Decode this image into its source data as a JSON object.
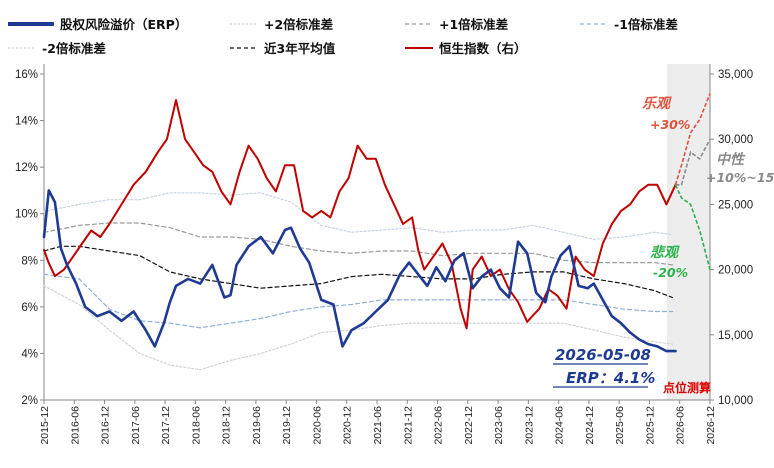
{
  "chart_data": {
    "type": "line",
    "legend": [
      {
        "key": "erp",
        "label": "股权风险溢价（ERP）",
        "color": "#1f3a93",
        "style": "solid-thick"
      },
      {
        "key": "p2",
        "label": "+2倍标准差",
        "color": "#c8d3e6",
        "style": "dotted"
      },
      {
        "key": "p1",
        "label": "+1倍标准差",
        "color": "#9a9a9a",
        "style": "dashed"
      },
      {
        "key": "m1",
        "label": "-1倍标准差",
        "color": "#8fb1d8",
        "style": "dashed"
      },
      {
        "key": "m2",
        "label": "-2倍标准差",
        "color": "#cfd3da",
        "style": "dotted"
      },
      {
        "key": "avg",
        "label": "近3年平均值",
        "color": "#111111",
        "style": "dashed"
      },
      {
        "key": "hsi",
        "label": "恒生指数（右）",
        "color": "#c00000",
        "style": "solid"
      }
    ],
    "legend_placement": "top",
    "y_left": {
      "ticks": [
        "2%",
        "4%",
        "6%",
        "8%",
        "10%",
        "12%",
        "14%",
        "16%"
      ],
      "range": [
        2,
        16
      ]
    },
    "y_right": {
      "ticks": [
        "10,000",
        "15,000",
        "20,000",
        "25,000",
        "30,000",
        "35,000"
      ],
      "range": [
        10000,
        35000
      ]
    },
    "x_ticks": [
      "2015-12",
      "2016-06",
      "2016-12",
      "2017-06",
      "2017-12",
      "2018-06",
      "2018-12",
      "2019-06",
      "2019-12",
      "2020-06",
      "2020-12",
      "2021-06",
      "2021-12",
      "2022-06",
      "2022-12",
      "2023-06",
      "2023-12",
      "2024-06",
      "2024-12",
      "2025-06",
      "2025-12",
      "2026-06",
      "2026-12"
    ],
    "series": [
      {
        "key": "erp",
        "x": [
          2015.92,
          2016.0,
          2016.1,
          2016.2,
          2016.3,
          2016.45,
          2016.6,
          2016.8,
          2017.0,
          2017.2,
          2017.4,
          2017.6,
          2017.75,
          2017.9,
          2018.0,
          2018.1,
          2018.3,
          2018.5,
          2018.7,
          2018.9,
          2019.0,
          2019.1,
          2019.3,
          2019.5,
          2019.7,
          2019.9,
          2020.0,
          2020.15,
          2020.3,
          2020.5,
          2020.7,
          2020.85,
          2021.0,
          2021.2,
          2021.4,
          2021.6,
          2021.8,
          2021.95,
          2022.1,
          2022.25,
          2022.4,
          2022.55,
          2022.7,
          2022.85,
          2023.0,
          2023.15,
          2023.3,
          2023.45,
          2023.6,
          2023.75,
          2023.9,
          2024.05,
          2024.2,
          2024.3,
          2024.45,
          2024.6,
          2024.75,
          2024.9,
          2025.0,
          2025.15,
          2025.3,
          2025.45,
          2025.6,
          2025.75,
          2025.9,
          2026.05,
          2026.2,
          2026.35
        ],
        "y": [
          9.0,
          11.0,
          10.5,
          8.5,
          7.8,
          7.0,
          6.0,
          5.6,
          5.8,
          5.4,
          5.8,
          5.0,
          4.3,
          5.3,
          6.2,
          6.9,
          7.2,
          7.0,
          7.8,
          6.4,
          6.5,
          7.8,
          8.6,
          9.0,
          8.3,
          9.3,
          9.4,
          8.5,
          7.9,
          6.3,
          6.1,
          4.3,
          5.0,
          5.3,
          5.8,
          6.3,
          7.4,
          7.9,
          7.4,
          6.9,
          7.7,
          7.1,
          8.0,
          8.3,
          6.8,
          7.3,
          7.6,
          6.8,
          6.4,
          8.8,
          8.3,
          6.6,
          6.2,
          7.3,
          8.2,
          8.6,
          6.9,
          6.8,
          7.0,
          6.3,
          5.6,
          5.3,
          4.9,
          4.6,
          4.4,
          4.3,
          4.1,
          4.1
        ]
      },
      {
        "key": "p2",
        "x": [
          2015.92,
          2016.5,
          2017.0,
          2017.5,
          2018.0,
          2018.5,
          2019.0,
          2019.5,
          2020.0,
          2020.5,
          2021.0,
          2021.5,
          2022.0,
          2022.5,
          2023.0,
          2023.5,
          2024.0,
          2024.5,
          2025.0,
          2025.5,
          2026.0,
          2026.3
        ],
        "y": [
          10.1,
          10.4,
          10.6,
          10.6,
          10.9,
          10.9,
          10.8,
          10.9,
          10.5,
          9.5,
          9.2,
          9.3,
          9.4,
          9.2,
          9.3,
          9.3,
          9.5,
          9.2,
          8.9,
          9.0,
          9.2,
          9.1
        ]
      },
      {
        "key": "p1",
        "x": [
          2015.92,
          2016.5,
          2017.0,
          2017.5,
          2018.0,
          2018.5,
          2019.0,
          2019.5,
          2020.0,
          2020.5,
          2021.0,
          2021.5,
          2022.0,
          2022.5,
          2023.0,
          2023.5,
          2024.0,
          2024.5,
          2025.0,
          2025.5,
          2026.0,
          2026.3
        ],
        "y": [
          9.2,
          9.5,
          9.6,
          9.6,
          9.4,
          9.0,
          9.0,
          8.9,
          8.6,
          8.4,
          8.3,
          8.4,
          8.4,
          8.2,
          8.3,
          8.3,
          8.3,
          8.0,
          7.9,
          7.9,
          7.9,
          7.8
        ]
      },
      {
        "key": "avg",
        "x": [
          2015.92,
          2016.2,
          2016.5,
          2017.0,
          2017.5,
          2018.0,
          2018.5,
          2019.0,
          2019.5,
          2020.0,
          2020.5,
          2021.0,
          2021.5,
          2022.0,
          2022.5,
          2023.0,
          2023.5,
          2024.0,
          2024.5,
          2025.0,
          2025.5,
          2026.0,
          2026.3
        ],
        "y": [
          8.4,
          8.6,
          8.6,
          8.4,
          8.2,
          7.5,
          7.2,
          7.0,
          6.8,
          6.9,
          7.0,
          7.3,
          7.4,
          7.3,
          7.2,
          7.2,
          7.4,
          7.5,
          7.5,
          7.2,
          7.0,
          6.7,
          6.4
        ]
      },
      {
        "key": "m1",
        "x": [
          2015.92,
          2016.5,
          2017.0,
          2017.5,
          2018.0,
          2018.5,
          2019.0,
          2019.5,
          2020.0,
          2020.5,
          2021.0,
          2021.5,
          2022.0,
          2022.5,
          2023.0,
          2023.5,
          2024.0,
          2024.5,
          2025.0,
          2025.5,
          2026.0,
          2026.3
        ],
        "y": [
          7.4,
          7.2,
          5.9,
          5.4,
          5.3,
          5.1,
          5.3,
          5.5,
          5.8,
          6.0,
          6.1,
          6.3,
          6.3,
          6.3,
          6.3,
          6.3,
          6.3,
          6.3,
          6.1,
          5.9,
          5.8,
          5.8
        ]
      },
      {
        "key": "m2",
        "x": [
          2015.92,
          2016.5,
          2017.0,
          2017.5,
          2018.0,
          2018.5,
          2019.0,
          2019.5,
          2020.0,
          2020.5,
          2021.0,
          2021.5,
          2022.0,
          2022.5,
          2023.0,
          2023.5,
          2024.0,
          2024.5,
          2025.0,
          2025.5,
          2026.0,
          2026.3
        ],
        "y": [
          6.9,
          6.1,
          5.0,
          4.0,
          3.5,
          3.3,
          3.7,
          4.0,
          4.4,
          4.9,
          5.0,
          5.2,
          5.3,
          5.3,
          5.3,
          5.3,
          5.3,
          5.3,
          5.0,
          4.7,
          4.5,
          4.4
        ]
      },
      {
        "key": "hsi",
        "x": [
          2015.92,
          2016.0,
          2016.1,
          2016.25,
          2016.4,
          2016.55,
          2016.7,
          2016.85,
          2017.0,
          2017.2,
          2017.4,
          2017.6,
          2017.8,
          2017.95,
          2018.1,
          2018.25,
          2018.4,
          2018.55,
          2018.7,
          2018.85,
          2019.0,
          2019.15,
          2019.3,
          2019.45,
          2019.6,
          2019.75,
          2019.9,
          2020.05,
          2020.2,
          2020.35,
          2020.5,
          2020.65,
          2020.8,
          2020.95,
          2021.1,
          2021.25,
          2021.4,
          2021.55,
          2021.7,
          2021.85,
          2022.0,
          2022.1,
          2022.2,
          2022.35,
          2022.5,
          2022.65,
          2022.8,
          2022.9,
          2023.0,
          2023.15,
          2023.3,
          2023.45,
          2023.6,
          2023.75,
          2023.9,
          2024.0,
          2024.1,
          2024.25,
          2024.4,
          2024.55,
          2024.7,
          2024.85,
          2025.0,
          2025.15,
          2025.3,
          2025.45,
          2025.6,
          2025.75,
          2025.9,
          2026.05,
          2026.2,
          2026.35
        ],
        "y": [
          21500,
          20500,
          19500,
          20000,
          21000,
          22000,
          23000,
          22500,
          23500,
          25000,
          26500,
          27500,
          29000,
          30000,
          33000,
          30000,
          29000,
          28000,
          27500,
          26000,
          25000,
          27500,
          29500,
          28500,
          27000,
          26000,
          28000,
          28000,
          24500,
          24000,
          24500,
          24000,
          26000,
          27000,
          29500,
          28500,
          28500,
          26500,
          25000,
          23500,
          24000,
          21500,
          20000,
          21000,
          22000,
          20500,
          17000,
          15500,
          20000,
          21000,
          19500,
          20000,
          18500,
          17500,
          16000,
          16500,
          17000,
          18500,
          18000,
          17000,
          21000,
          20000,
          19500,
          22000,
          23500,
          24500,
          25000,
          26000,
          26500,
          26500,
          25000,
          26500
        ]
      }
    ],
    "scenarios": [
      {
        "label": "乐观",
        "change": "+30%",
        "color": "#e0513b",
        "style": "dashed"
      },
      {
        "label": "中性",
        "change": "+10%~15%",
        "color": "#8a8a8a",
        "style": "dashed"
      },
      {
        "label": "悲观",
        "change": "-20%",
        "color": "#2bb24c",
        "style": "dashed"
      }
    ],
    "annotations": {
      "date": "2026-05-08",
      "erp_label": "ERP：4.1%",
      "forecast_label": "点位测算"
    }
  }
}
